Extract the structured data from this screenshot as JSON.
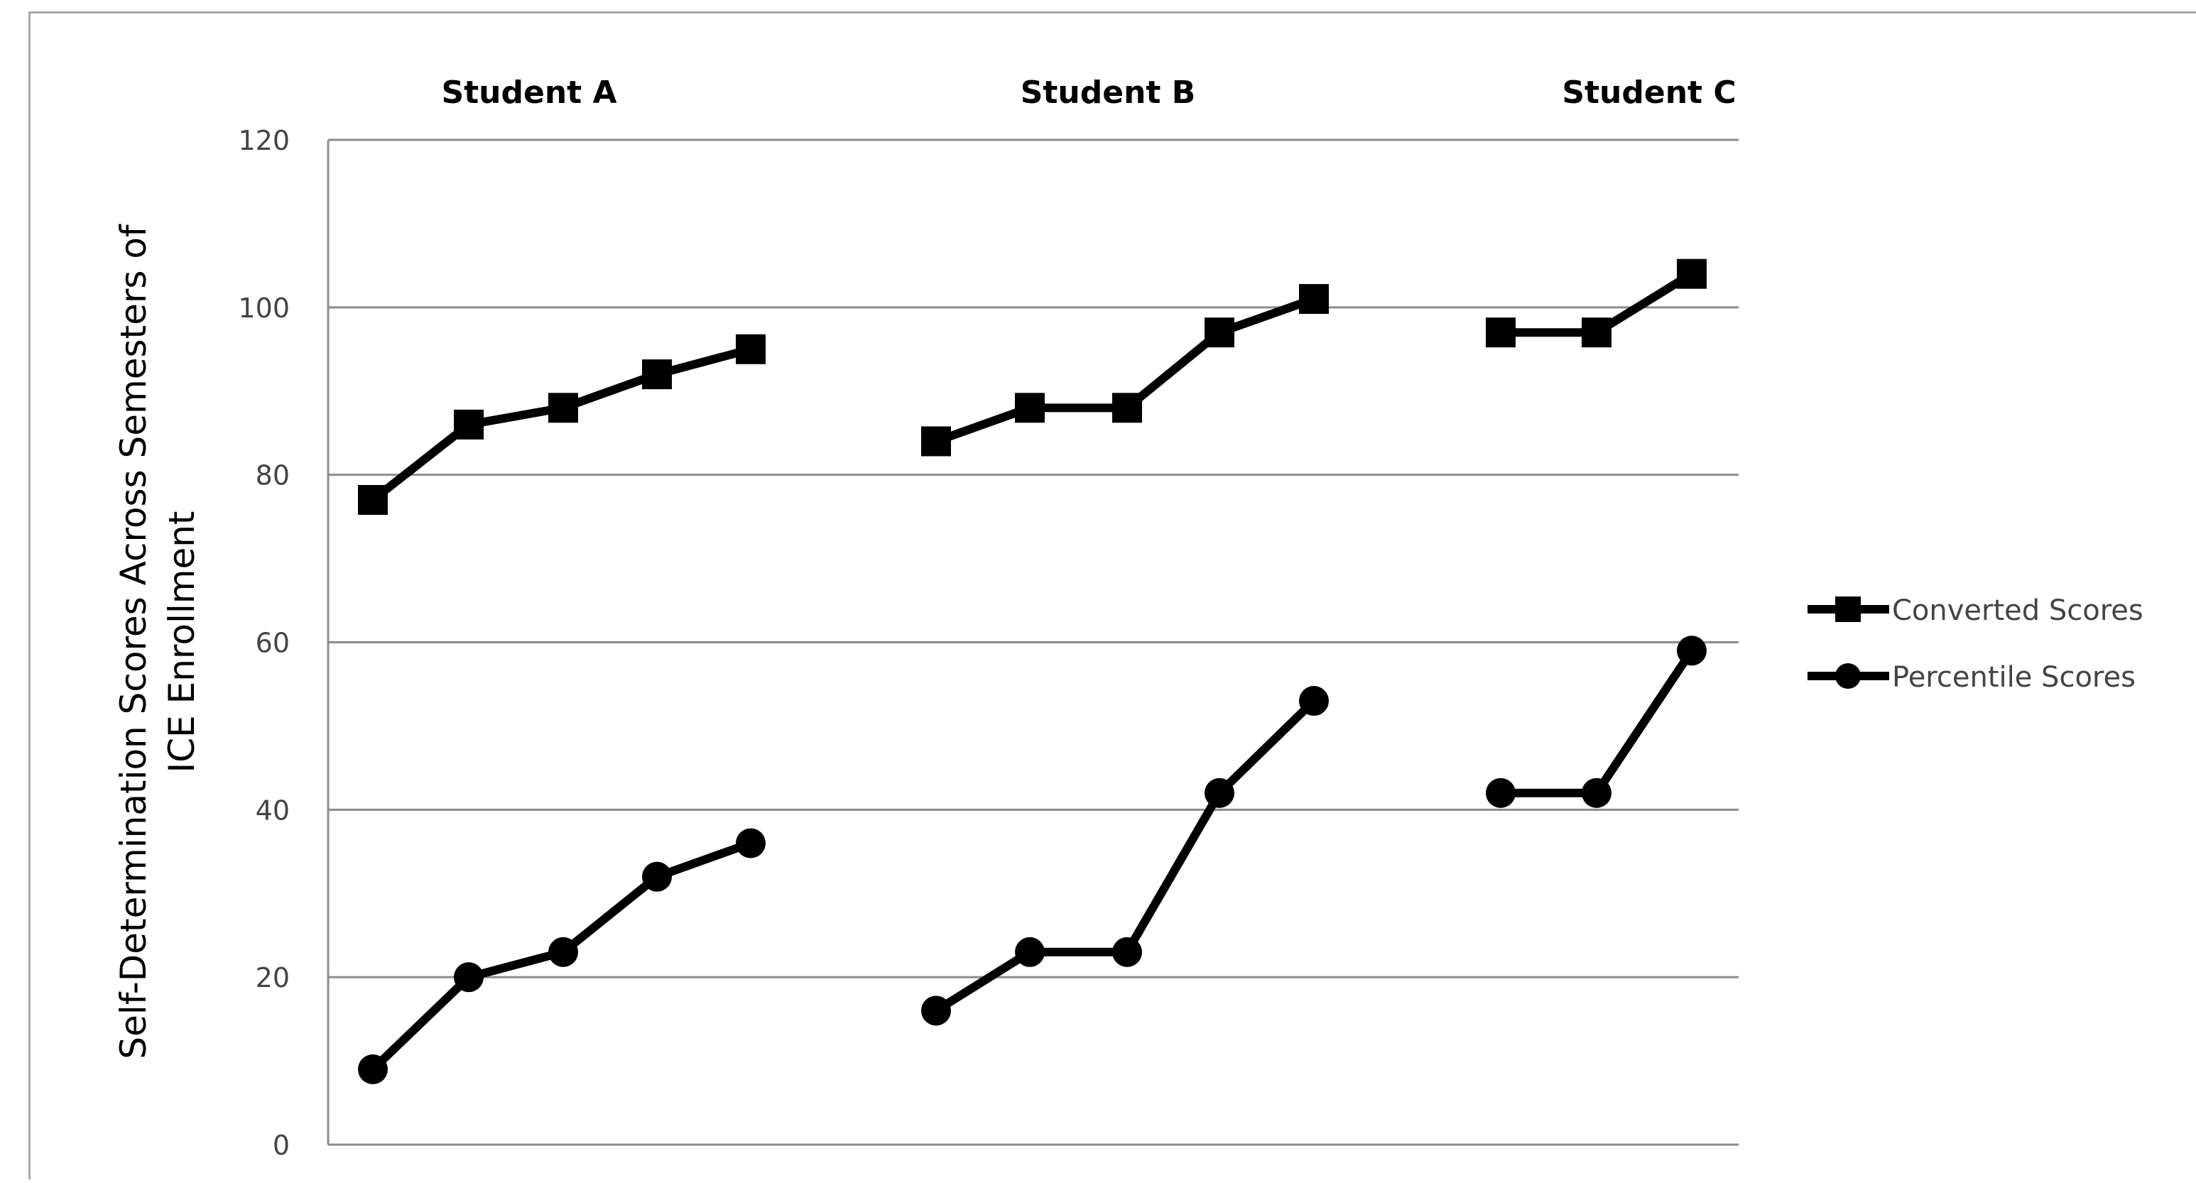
{
  "chart_data": {
    "type": "line",
    "ylabel": "Self-Determination Scores Across Semesters of ICE Enrollment",
    "ylim": [
      0,
      120
    ],
    "yticks": [
      0,
      20,
      40,
      60,
      80,
      100,
      120
    ],
    "grid": true,
    "legend_position": "right",
    "panels": [
      {
        "label": "Student A",
        "series": [
          {
            "name": "Converted Scores",
            "values": [
              77,
              86,
              88,
              92,
              95
            ]
          },
          {
            "name": "Percentile Scores",
            "values": [
              9,
              20,
              23,
              32,
              36
            ]
          }
        ]
      },
      {
        "label": "Student B",
        "series": [
          {
            "name": "Converted Scores",
            "values": [
              84,
              88,
              88,
              97,
              101
            ]
          },
          {
            "name": "Percentile Scores",
            "values": [
              16,
              23,
              23,
              42,
              53
            ]
          }
        ]
      },
      {
        "label": "Student C",
        "series": [
          {
            "name": "Converted Scores",
            "values": [
              97,
              97,
              104
            ]
          },
          {
            "name": "Percentile Scores",
            "values": [
              42,
              42,
              59
            ]
          }
        ]
      }
    ],
    "legend": [
      {
        "name": "Converted Scores",
        "marker": "square"
      },
      {
        "name": "Percentile Scores",
        "marker": "circle"
      }
    ],
    "colors": {
      "line": "#000000",
      "grid": "#8c8c8c",
      "axis": "#8c8c8c",
      "text": "#000000",
      "tick_text": "#444444"
    }
  }
}
